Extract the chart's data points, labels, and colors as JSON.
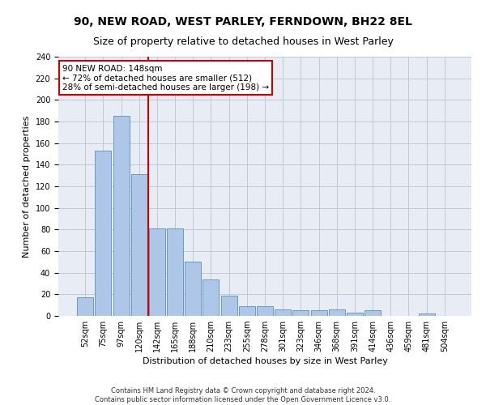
{
  "title1": "90, NEW ROAD, WEST PARLEY, FERNDOWN, BH22 8EL",
  "title2": "Size of property relative to detached houses in West Parley",
  "xlabel": "Distribution of detached houses by size in West Parley",
  "ylabel": "Number of detached properties",
  "footer": "Contains HM Land Registry data © Crown copyright and database right 2024.\nContains public sector information licensed under the Open Government Licence v3.0.",
  "categories": [
    "52sqm",
    "75sqm",
    "97sqm",
    "120sqm",
    "142sqm",
    "165sqm",
    "188sqm",
    "210sqm",
    "233sqm",
    "255sqm",
    "278sqm",
    "301sqm",
    "323sqm",
    "346sqm",
    "368sqm",
    "391sqm",
    "414sqm",
    "436sqm",
    "459sqm",
    "481sqm",
    "504sqm"
  ],
  "values": [
    17,
    153,
    185,
    131,
    81,
    81,
    50,
    34,
    19,
    9,
    9,
    6,
    5,
    5,
    6,
    3,
    5,
    0,
    0,
    2,
    0
  ],
  "bar_color": "#aec6e8",
  "bar_edge_color": "#5a8fc0",
  "vline_x": 3.5,
  "vline_color": "#cc0000",
  "annotation_text": "90 NEW ROAD: 148sqm\n← 72% of detached houses are smaller (512)\n28% of semi-detached houses are larger (198) →",
  "annotation_box_color": "#ffffff",
  "annotation_box_edge": "#cc0000",
  "ylim": [
    0,
    240
  ],
  "yticks": [
    0,
    20,
    40,
    60,
    80,
    100,
    120,
    140,
    160,
    180,
    200,
    220,
    240
  ],
  "title_fontsize": 10,
  "subtitle_fontsize": 9,
  "axis_label_fontsize": 8,
  "tick_fontsize": 7,
  "grid_color": "#c0c8d8",
  "background_color": "#e8edf5"
}
